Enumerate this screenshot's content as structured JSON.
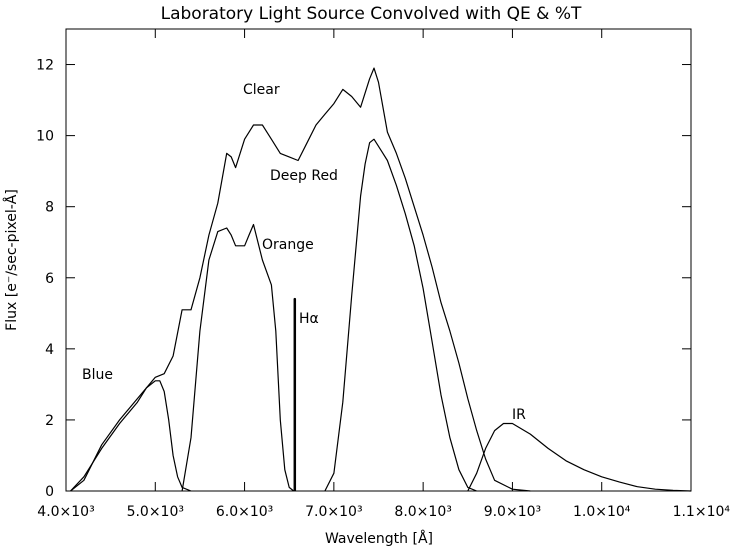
{
  "chart_data": {
    "type": "line",
    "title": "Laboratory Light Source Convolved with QE & %T",
    "xlabel": "Wavelength [Å]",
    "ylabel": "Flux [e⁻/sec-pixel-Å]",
    "xlim": [
      4000,
      11000
    ],
    "ylim": [
      0,
      13
    ],
    "x_ticks": [
      4000,
      5000,
      6000,
      7000,
      8000,
      9000,
      10000,
      11000
    ],
    "x_tick_labels": [
      "4.0×10³",
      "5.0×10³",
      "6.0×10³",
      "7.0×10³",
      "8.0×10³",
      "9.0×10³",
      "1.0×10⁴",
      "1.1×10⁴"
    ],
    "y_ticks": [
      0,
      2,
      4,
      6,
      8,
      10,
      12
    ],
    "y_tick_labels": [
      "0",
      "2",
      "4",
      "6",
      "8",
      "10",
      "12"
    ],
    "grid": false,
    "color": "#000000",
    "series": [
      {
        "name": "Clear",
        "x": [
          4050,
          4200,
          4400,
          4600,
          4800,
          5000,
          5100,
          5200,
          5300,
          5400,
          5500,
          5600,
          5700,
          5800,
          5850,
          5900,
          6000,
          6100,
          6200,
          6300,
          6400,
          6500,
          6600,
          6700,
          6800,
          6900,
          7000,
          7100,
          7200,
          7300,
          7400,
          7450,
          7500,
          7600,
          7700,
          7800,
          7900,
          8000,
          8100,
          8200,
          8300,
          8400,
          8500,
          8600,
          8700,
          8800,
          9000,
          9200
        ],
        "y": [
          0,
          0.3,
          1.3,
          2.0,
          2.6,
          3.2,
          3.3,
          3.8,
          5.1,
          5.1,
          6.0,
          7.2,
          8.1,
          9.5,
          9.4,
          9.1,
          9.9,
          10.3,
          10.3,
          9.9,
          9.5,
          9.4,
          9.3,
          9.8,
          10.3,
          10.6,
          10.9,
          11.3,
          11.1,
          10.8,
          11.6,
          11.9,
          11.5,
          10.1,
          9.5,
          8.8,
          8.0,
          7.2,
          6.3,
          5.3,
          4.5,
          3.6,
          2.6,
          1.7,
          0.9,
          0.3,
          0.05,
          0
        ]
      },
      {
        "name": "Blue",
        "x": [
          4050,
          4200,
          4400,
          4600,
          4800,
          4900,
          5000,
          5050,
          5100,
          5150,
          5200,
          5250,
          5300,
          5400
        ],
        "y": [
          0,
          0.4,
          1.2,
          1.9,
          2.5,
          2.9,
          3.1,
          3.1,
          2.8,
          2.0,
          1.0,
          0.4,
          0.1,
          0
        ]
      },
      {
        "name": "Orange",
        "x": [
          5300,
          5400,
          5500,
          5600,
          5700,
          5800,
          5850,
          5900,
          6000,
          6050,
          6100,
          6200,
          6300,
          6350,
          6400,
          6450,
          6500,
          6550
        ],
        "y": [
          0,
          1.5,
          4.5,
          6.5,
          7.3,
          7.4,
          7.2,
          6.9,
          6.9,
          7.2,
          7.5,
          6.5,
          5.8,
          4.5,
          2.0,
          0.6,
          0.1,
          0
        ]
      },
      {
        "name": "Deep Red",
        "x": [
          6900,
          7000,
          7100,
          7200,
          7300,
          7350,
          7400,
          7450,
          7500,
          7600,
          7700,
          7800,
          7900,
          8000,
          8100,
          8200,
          8300,
          8400,
          8500,
          8600
        ],
        "y": [
          0,
          0.5,
          2.5,
          5.5,
          8.3,
          9.2,
          9.8,
          9.9,
          9.7,
          9.3,
          8.6,
          7.8,
          6.9,
          5.7,
          4.2,
          2.7,
          1.5,
          0.6,
          0.1,
          0
        ]
      },
      {
        "name": "IR",
        "x": [
          8500,
          8600,
          8700,
          8800,
          8900,
          9000,
          9200,
          9400,
          9600,
          9800,
          10000,
          10200,
          10400,
          10600,
          10800,
          11000
        ],
        "y": [
          0,
          0.5,
          1.2,
          1.7,
          1.9,
          1.9,
          1.6,
          1.2,
          0.85,
          0.6,
          0.4,
          0.25,
          0.12,
          0.05,
          0.02,
          0
        ]
      },
      {
        "name": "Hα",
        "x": [
          6563,
          6563,
          6563
        ],
        "y": [
          0,
          5.4,
          0
        ]
      }
    ],
    "labels": {
      "clear": "Clear",
      "deep_red": "Deep Red",
      "orange": "Orange",
      "halpha": "Hα",
      "blue": "Blue",
      "ir": "IR"
    }
  }
}
